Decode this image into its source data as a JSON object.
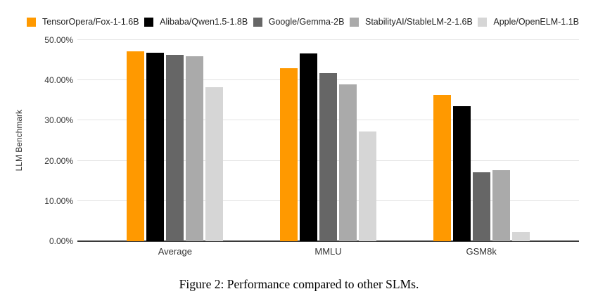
{
  "chart_data": {
    "type": "bar",
    "categories": [
      "Average",
      "MMLU",
      "GSM8k"
    ],
    "series": [
      {
        "name": "TensorOpera/Fox-1-1.6B",
        "color": "#FF9900",
        "values": [
          47.13,
          43.05,
          36.39
        ]
      },
      {
        "name": "Alibaba/Qwen1.5-1.8B",
        "color": "#000000",
        "values": [
          46.78,
          46.71,
          33.59
        ]
      },
      {
        "name": "Google/Gemma-2B",
        "color": "#666666",
        "values": [
          46.36,
          41.81,
          17.06
        ]
      },
      {
        "name": "StabilityAI/StableLM-2-1.6B",
        "color": "#AAAAAA",
        "values": [
          45.92,
          38.95,
          17.74
        ]
      },
      {
        "name": "Apple/OpenELM-1.1B",
        "color": "#D6D6D6",
        "values": [
          38.32,
          27.28,
          2.27
        ]
      }
    ],
    "title": "",
    "xlabel": "",
    "ylabel": "LLM Benchmark",
    "ylim": [
      0,
      50
    ],
    "yticks": [
      "0.00%",
      "10.00%",
      "20.00%",
      "30.00%",
      "40.00%",
      "50.00%"
    ],
    "grid": true,
    "legend_position": "top",
    "colors": {
      "gridline": "#e3e3e3",
      "axis_line": "#3a3a3a",
      "background": "#ffffff"
    }
  },
  "caption": "Figure 2: Performance compared to other SLMs."
}
